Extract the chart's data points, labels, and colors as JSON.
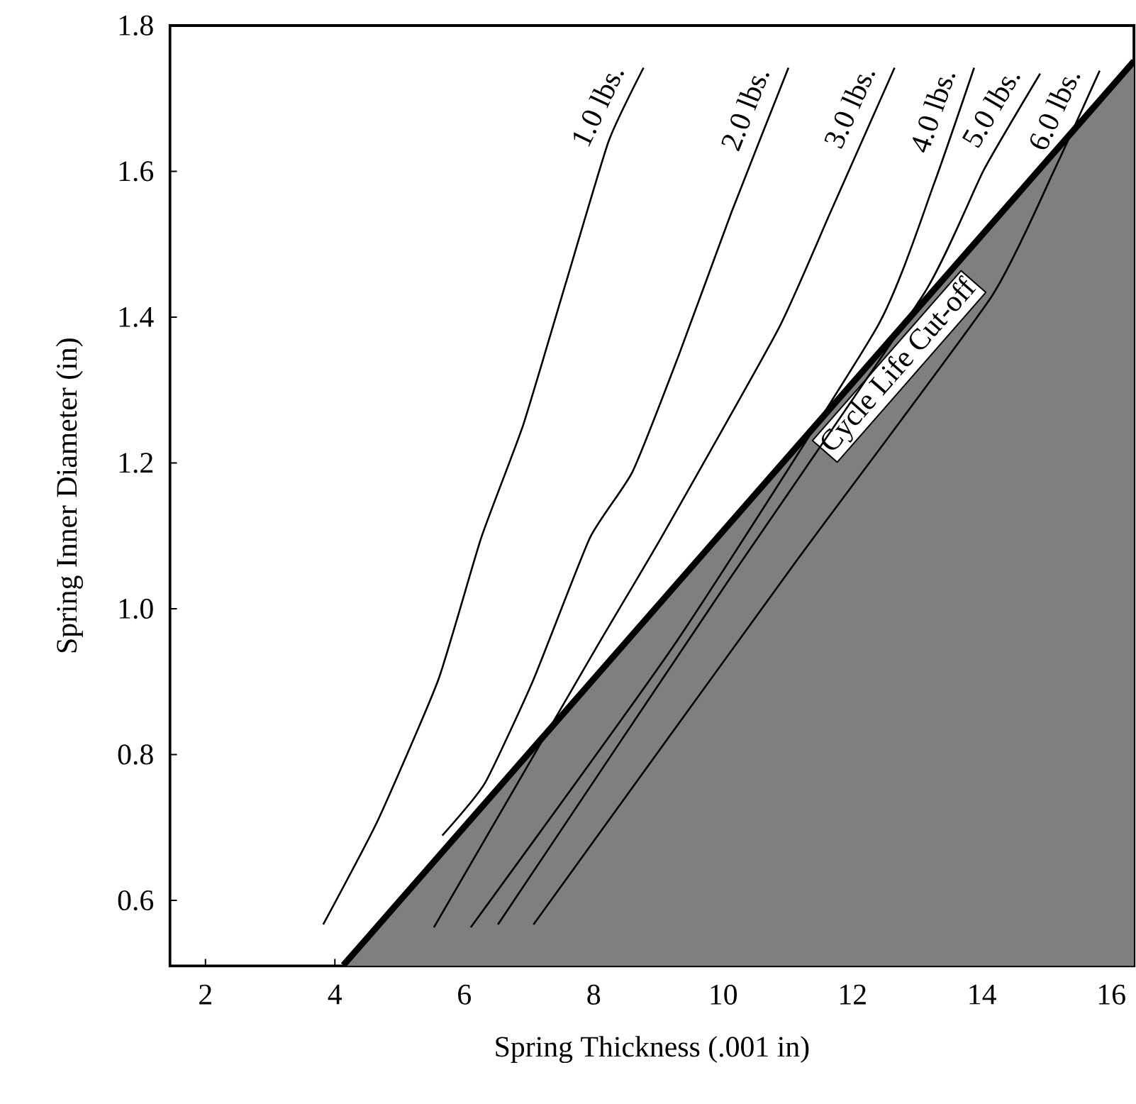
{
  "chart_data": {
    "type": "line",
    "xlabel": "Spring Thickness (.001 in)",
    "ylabel": "Spring Inner Diameter (in)",
    "xlim": [
      1.45,
      16.35
    ],
    "ylim": [
      0.51,
      1.8
    ],
    "xticks": [
      2,
      4,
      6,
      8,
      10,
      12,
      14,
      16
    ],
    "yticks": [
      0.6,
      0.8,
      {
        "value": 1.0,
        "label": "1.0"
      },
      1.2,
      1.4,
      1.6,
      1.8
    ],
    "line_style": "solid",
    "series": [
      {
        "name": "Cycle Life Cut-off",
        "type": "area",
        "color": "#7f7f7f",
        "x": [
          4.13,
          16.35
        ],
        "values": [
          0.511,
          1.751
        ]
      },
      {
        "name": "1.0 lbs.",
        "color": "#000000",
        "x": [
          3.82,
          4.66,
          5.6,
          6.26,
          6.91,
          7.57,
          8.23,
          8.77
        ],
        "values": [
          0.567,
          0.709,
          0.903,
          1.097,
          1.252,
          1.447,
          1.641,
          1.742
        ]
      },
      {
        "name": "2.0 lbs.",
        "color": "#000000",
        "x": [
          5.66,
          6.32,
          7.07,
          7.94,
          8.6,
          9.32,
          10.13,
          11.01
        ],
        "values": [
          0.689,
          0.761,
          0.903,
          1.097,
          1.188,
          1.349,
          1.544,
          1.742
        ]
      },
      {
        "name": "3.0 lbs.",
        "color": "#000000",
        "x": [
          5.53,
          8.01,
          9.04,
          10.85,
          11.66,
          12.65
        ],
        "values": [
          0.563,
          0.942,
          1.097,
          1.383,
          1.544,
          1.742
        ]
      },
      {
        "name": "4.0 lbs.",
        "color": "#000000",
        "x": [
          6.1,
          9.28,
          12.39,
          13.26,
          13.88
        ],
        "values": [
          0.563,
          0.955,
          1.388,
          1.583,
          1.742
        ]
      },
      {
        "name": "5.0 lbs.",
        "color": "#000000",
        "x": [
          6.52,
          10.04,
          13.11,
          14.03,
          14.9
        ],
        "values": [
          0.567,
          1.033,
          1.433,
          1.602,
          1.734
        ]
      },
      {
        "name": "6.0 lbs.",
        "color": "#000000",
        "x": [
          7.07,
          11.07,
          14.14,
          15.12,
          15.82
        ],
        "values": [
          0.567,
          1.058,
          1.427,
          1.602,
          1.738
        ]
      }
    ]
  }
}
